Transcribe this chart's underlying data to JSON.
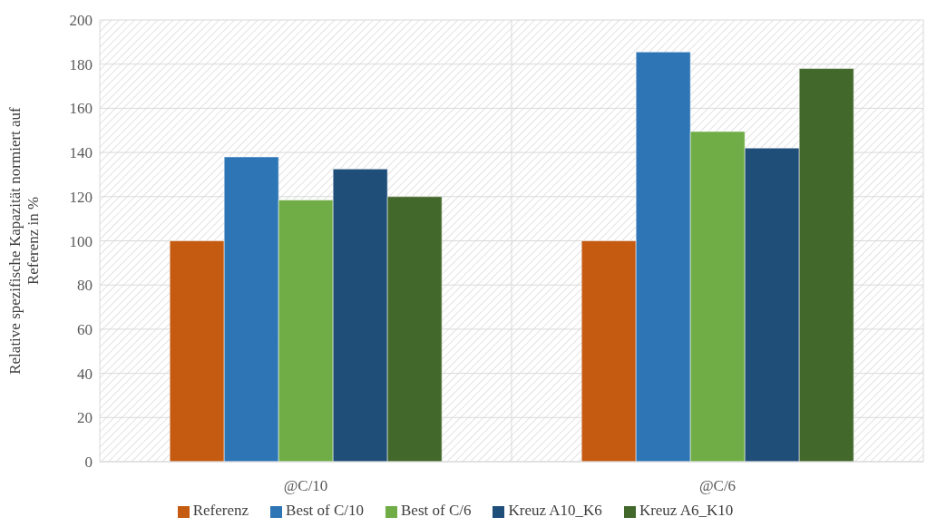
{
  "chart_data": {
    "type": "bar",
    "ylabel": "Relative spezifische Kapazität normiert auf Referenz in %",
    "categories": [
      "@C/10",
      "@C/6"
    ],
    "series": [
      {
        "name": "Referenz",
        "color": "#c55a11",
        "values": [
          100,
          100
        ]
      },
      {
        "name": "Best of C/10",
        "color": "#2e75b6",
        "values": [
          138,
          185.5
        ]
      },
      {
        "name": "Best of C/6",
        "color": "#70ad47",
        "values": [
          118.5,
          149.5
        ]
      },
      {
        "name": "Kreuz A10_K6",
        "color": "#1f4e79",
        "values": [
          132.5,
          142
        ]
      },
      {
        "name": "Kreuz A6_K10",
        "color": "#43682b",
        "values": [
          120,
          178
        ]
      }
    ],
    "ylim": [
      0,
      200
    ],
    "yticks": [
      0,
      20,
      40,
      60,
      80,
      100,
      120,
      140,
      160,
      180,
      200
    ],
    "grid": true,
    "legend": "bottom"
  }
}
